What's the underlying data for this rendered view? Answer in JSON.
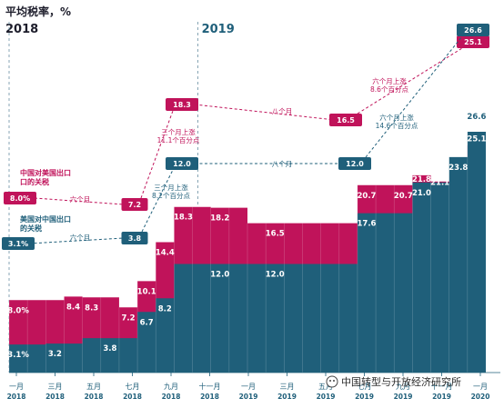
{
  "title": "平均税率，%",
  "colors": {
    "china_on_us": "#c0135a",
    "china_on_us_dark": "#9a0f47",
    "us_on_china": "#1f5f7a",
    "us_on_china_dark": "#174b61",
    "light": "#6a8fa3"
  },
  "chart_data": {
    "type": "area",
    "ylabel": "平均税率，%",
    "year_markers": [
      "2018",
      "2019"
    ],
    "x_ticks": [
      {
        "month": "一月",
        "year": "2018"
      },
      {
        "month": "三月",
        "year": "2018"
      },
      {
        "month": "五月",
        "year": "2018"
      },
      {
        "month": "七月",
        "year": "2018"
      },
      {
        "month": "九月",
        "year": "2018"
      },
      {
        "month": "十一月",
        "year": "2018"
      },
      {
        "month": "一月",
        "year": "2019"
      },
      {
        "month": "三月",
        "year": "2019"
      },
      {
        "month": "五月",
        "year": "2019"
      },
      {
        "month": "七月",
        "year": "2019"
      },
      {
        "month": "九月",
        "year": "2019"
      },
      {
        "month": "十一月",
        "year": "2019"
      },
      {
        "month": "一月",
        "year": "2020"
      }
    ],
    "series": [
      {
        "name": "中国对美国出口的关税",
        "legend_lines": [
          "中国对美国出口",
          "口的关税"
        ],
        "values": [
          8.0,
          8.0,
          8.0,
          8.4,
          8.3,
          8.3,
          7.2,
          10.1,
          14.4,
          18.3,
          18.3,
          18.2,
          18.2,
          16.5,
          16.5,
          16.5,
          16.5,
          16.5,
          16.5,
          20.7,
          20.7,
          20.7,
          21.8,
          21.1,
          21.1,
          25.1
        ]
      },
      {
        "name": "美国对中国出口的关税",
        "legend_lines": [
          "美国对中国出口",
          "的关税"
        ],
        "values": [
          3.1,
          3.1,
          3.2,
          3.2,
          3.8,
          3.8,
          3.8,
          6.7,
          8.2,
          12.0,
          12.0,
          12.0,
          12.0,
          12.0,
          12.0,
          12.0,
          12.0,
          12.0,
          12.0,
          17.6,
          17.6,
          17.6,
          21.0,
          21.0,
          23.8,
          26.6
        ]
      }
    ],
    "segment_labels": {
      "red": [
        "8.0%",
        "8.4",
        "8.3",
        "7.2",
        "10.1",
        "14.4",
        "18.3",
        "18.2",
        "16.5",
        "20.7",
        "20.7",
        "21.8",
        "21.1",
        "25.1"
      ],
      "blue": [
        "3.1%",
        "3.2",
        "3.8",
        "6.7",
        "8.2",
        "12.0",
        "12.0",
        "17.6",
        "21.0",
        "23.8",
        "26.6"
      ]
    },
    "upper_annotations": {
      "red_boxes": [
        "8.0%",
        "7.2",
        "18.3",
        "16.5",
        "25.1"
      ],
      "blue_boxes": [
        "3.1%",
        "3.8",
        "12.0",
        "12.0",
        "26.6"
      ],
      "duration_six_months": "六个月",
      "duration_eight_months": "八个月",
      "red_rise_1": [
        "三个月上涨",
        "11.1个百分点"
      ],
      "blue_rise_1": [
        "三个月上涨",
        "8.2个百分点"
      ],
      "red_rise_2": [
        "六个月上涨",
        "8.6个百分点"
      ],
      "blue_rise_2": [
        "六个月上涨",
        "14.6个百分点"
      ]
    }
  },
  "watermark": "中国转型与开放经济研究所"
}
